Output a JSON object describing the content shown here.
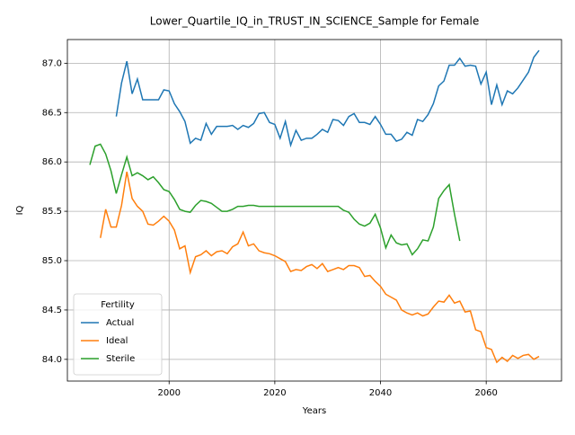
{
  "chart_data": {
    "type": "line",
    "title": "Lower_Quartile_IQ_in_TRUST_IN_SCIENCE_Sample for Female",
    "xlabel": "Years",
    "ylabel": "IQ",
    "legend_title": "Fertility",
    "legend": "lower left",
    "grid": true,
    "xlim": [
      1980.75,
      2074.25
    ],
    "ylim": [
      83.78,
      87.24
    ],
    "xticks": [
      2000,
      2020,
      2040,
      2060
    ],
    "yticks": [
      {
        "value": 84.0,
        "label": "84.0"
      },
      84.5,
      {
        "value": 85.0,
        "label": "85.0"
      },
      85.5,
      {
        "value": 86.0,
        "label": "86.0"
      },
      86.5,
      {
        "value": 87.0,
        "label": "87.0"
      }
    ],
    "x": [
      1985,
      1986,
      1987,
      1988,
      1989,
      1990,
      1991,
      1992,
      1993,
      1994,
      1995,
      1996,
      1997,
      1998,
      1999,
      2000,
      2001,
      2002,
      2003,
      2004,
      2005,
      2006,
      2007,
      2008,
      2009,
      2010,
      2011,
      2012,
      2013,
      2014,
      2015,
      2016,
      2017,
      2018,
      2019,
      2020,
      2021,
      2022,
      2023,
      2024,
      2025,
      2026,
      2027,
      2028,
      2029,
      2030,
      2031,
      2032,
      2033,
      2034,
      2035,
      2036,
      2037,
      2038,
      2039,
      2040,
      2041,
      2042,
      2043,
      2044,
      2045,
      2046,
      2047,
      2048,
      2049,
      2050,
      2051,
      2052,
      2053,
      2054,
      2055,
      2056,
      2057,
      2058,
      2059,
      2060,
      2061,
      2062,
      2063,
      2064,
      2065,
      2066,
      2067,
      2068,
      2069,
      2070
    ],
    "series": [
      {
        "name": "Actual",
        "color": "#1f77b4",
        "values": [
          null,
          null,
          null,
          null,
          null,
          86.46,
          86.8,
          87.02,
          86.69,
          86.84,
          86.63,
          86.63,
          86.63,
          86.63,
          86.73,
          86.72,
          86.59,
          86.51,
          86.41,
          86.19,
          86.24,
          86.22,
          86.39,
          86.28,
          86.36,
          86.36,
          86.36,
          86.37,
          86.33,
          86.37,
          86.35,
          86.39,
          86.49,
          86.5,
          86.4,
          86.38,
          86.24,
          86.41,
          86.17,
          86.32,
          86.22,
          86.24,
          86.24,
          86.28,
          86.33,
          86.3,
          86.43,
          86.42,
          86.37,
          86.46,
          86.49,
          86.4,
          86.4,
          86.38,
          86.46,
          86.38,
          86.28,
          86.28,
          86.21,
          86.23,
          86.3,
          86.27,
          86.43,
          86.41,
          86.48,
          86.59,
          86.77,
          86.82,
          86.98,
          86.98,
          87.05,
          86.97,
          86.98,
          86.97,
          86.79,
          86.91,
          86.58,
          86.78,
          86.58,
          86.72,
          86.69,
          86.75,
          86.83,
          86.91,
          87.06,
          87.13
        ]
      },
      {
        "name": "Ideal",
        "color": "#ff7f0e",
        "values": [
          null,
          null,
          85.23,
          85.52,
          85.34,
          85.34,
          85.56,
          85.9,
          85.63,
          85.55,
          85.5,
          85.37,
          85.36,
          85.4,
          85.45,
          85.4,
          85.31,
          85.12,
          85.15,
          84.88,
          85.04,
          85.06,
          85.1,
          85.05,
          85.09,
          85.1,
          85.07,
          85.14,
          85.17,
          85.29,
          85.15,
          85.17,
          85.1,
          85.08,
          85.07,
          85.05,
          85.02,
          84.99,
          84.89,
          84.91,
          84.9,
          84.94,
          84.96,
          84.92,
          84.97,
          84.89,
          84.91,
          84.93,
          84.91,
          84.95,
          84.95,
          84.93,
          84.84,
          84.85,
          84.79,
          84.74,
          84.66,
          84.63,
          84.6,
          84.5,
          84.47,
          84.45,
          84.47,
          84.44,
          84.46,
          84.53,
          84.59,
          84.58,
          84.65,
          84.57,
          84.59,
          84.48,
          84.49,
          84.3,
          84.28,
          84.12,
          84.1,
          83.97,
          84.02,
          83.98,
          84.04,
          84.01,
          84.04,
          84.05,
          84.0,
          84.03
        ]
      },
      {
        "name": "Sterile",
        "color": "#2ca02c",
        "values": [
          85.97,
          86.16,
          86.18,
          86.08,
          85.91,
          85.68,
          85.87,
          86.05,
          85.86,
          85.89,
          85.86,
          85.82,
          85.85,
          85.79,
          85.72,
          85.7,
          85.62,
          85.52,
          85.5,
          85.49,
          85.56,
          85.61,
          85.6,
          85.58,
          85.54,
          85.5,
          85.5,
          85.52,
          85.55,
          85.55,
          85.56,
          85.56,
          85.55,
          85.55,
          85.55,
          85.55,
          85.55,
          85.55,
          85.55,
          85.55,
          85.55,
          85.55,
          85.55,
          85.55,
          85.55,
          85.55,
          85.55,
          85.55,
          85.51,
          85.49,
          85.42,
          85.37,
          85.35,
          85.38,
          85.47,
          85.33,
          85.13,
          85.26,
          85.18,
          85.16,
          85.17,
          85.06,
          85.12,
          85.21,
          85.2,
          85.34,
          85.63,
          85.71,
          85.77,
          85.47,
          85.2,
          null,
          null,
          null,
          null,
          null,
          null,
          null,
          null,
          null,
          null,
          null,
          null,
          null,
          null,
          null
        ]
      }
    ]
  }
}
